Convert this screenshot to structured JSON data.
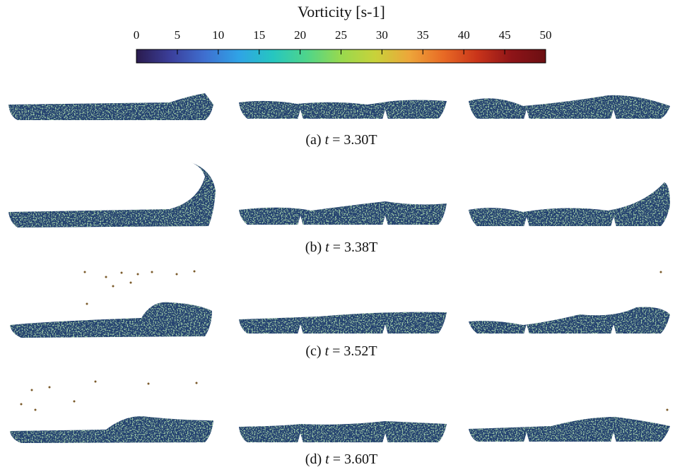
{
  "colorbar": {
    "title": "Vorticity [s-1]",
    "lim": [
      0,
      50
    ],
    "ticks": [
      0,
      5,
      10,
      15,
      20,
      25,
      30,
      35,
      40,
      45,
      50
    ],
    "colors": [
      "#2a1b4e",
      "#3b3f9b",
      "#3f6fd0",
      "#2fa3e6",
      "#26c6c0",
      "#4fd58a",
      "#98d94e",
      "#c8d23a",
      "#eda63a",
      "#e86a25",
      "#c9341a",
      "#8e1418",
      "#6b0f12"
    ]
  },
  "panels": [
    {
      "label": "(a)",
      "variable": "t",
      "value": "= 3.30T"
    },
    {
      "label": "(b)",
      "variable": "t",
      "value": "= 3.38T"
    },
    {
      "label": "(c)",
      "variable": "t",
      "value": "= 3.52T"
    },
    {
      "label": "(d)",
      "variable": "t",
      "value": "= 3.60T"
    }
  ]
}
